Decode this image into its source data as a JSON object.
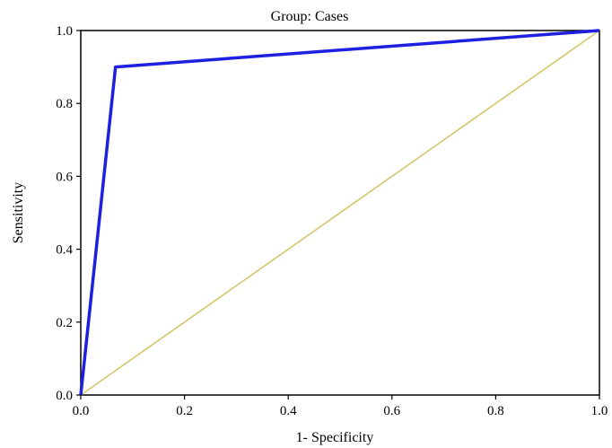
{
  "chart_data": {
    "type": "line",
    "title": "Group: Cases",
    "xlabel": "1- Specificity",
    "ylabel": "Sensitivity",
    "xlim": [
      0.0,
      1.0
    ],
    "ylim": [
      0.0,
      1.0
    ],
    "x_ticks": [
      "0.0",
      "0.2",
      "0.4",
      "0.6",
      "0.8",
      "1.0"
    ],
    "y_ticks": [
      "0.0",
      "0.2",
      "0.4",
      "0.6",
      "0.8",
      "1.0"
    ],
    "grid": false,
    "series": [
      {
        "color": "#1f1fe0",
        "points": [
          {
            "x": 0.0,
            "y": 0.0
          },
          {
            "x": 0.067,
            "y": 0.9
          },
          {
            "x": 1.0,
            "y": 1.0
          }
        ]
      },
      {
        "color": "#d4c66a",
        "points": [
          {
            "x": 0.0,
            "y": 0.0
          },
          {
            "x": 1.0,
            "y": 1.0
          }
        ]
      }
    ]
  }
}
